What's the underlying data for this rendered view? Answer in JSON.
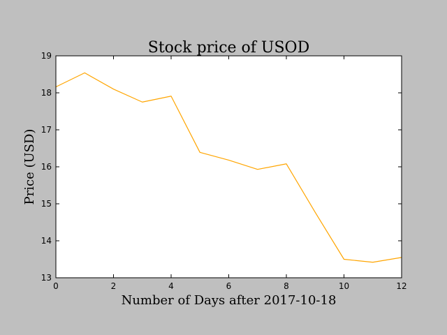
{
  "chart_data": {
    "type": "line",
    "title": "Stock price of USOD",
    "xlabel": "Number of Days after 2017-10-18",
    "ylabel": "Price (USD)",
    "xlim": [
      0,
      12
    ],
    "ylim": [
      13,
      19
    ],
    "xticks": [
      0,
      2,
      4,
      6,
      8,
      10,
      12
    ],
    "yticks": [
      13,
      14,
      15,
      16,
      17,
      18,
      19
    ],
    "grid": false,
    "series": [
      {
        "color": "#ffa500",
        "x": [
          0,
          1,
          2,
          3,
          4,
          5,
          6,
          7,
          8,
          9,
          10,
          11,
          12
        ],
        "y": [
          18.16,
          18.54,
          18.1,
          17.75,
          17.91,
          16.39,
          16.18,
          15.93,
          16.08,
          14.77,
          13.5,
          13.42,
          13.55
        ]
      }
    ]
  }
}
